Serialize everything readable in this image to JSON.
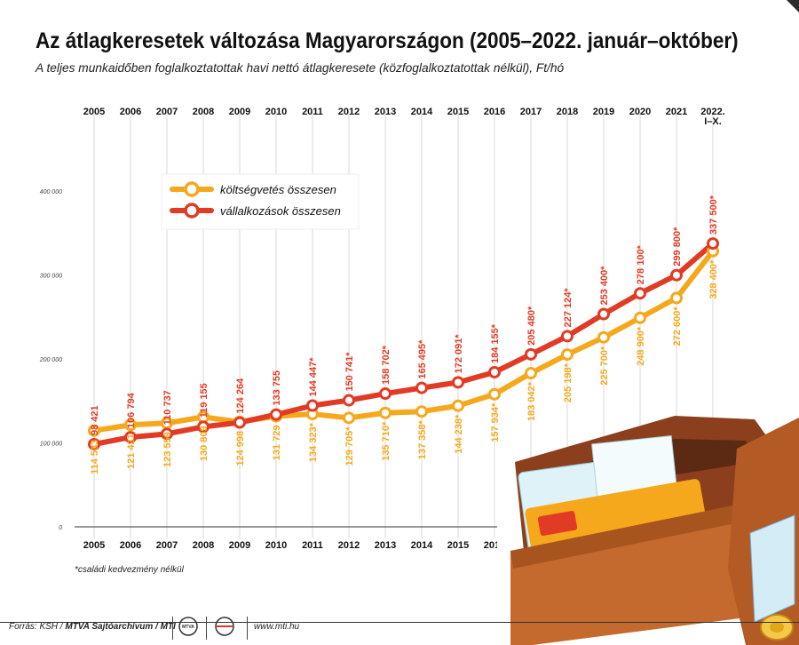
{
  "header": {
    "title": "Az átlagkeresetek változása Magyarországon (2005–2022. január–október)",
    "subtitle": "A teljes munkaidőben foglalkoztatottak havi nettó átlagkeresete (közfoglalkoztatottak nélkül), Ft/hó"
  },
  "chart_data": {
    "type": "line",
    "categories": [
      "2005",
      "2006",
      "2007",
      "2008",
      "2009",
      "2010",
      "2011",
      "2012",
      "2013",
      "2014",
      "2015",
      "2016",
      "2017",
      "2018",
      "2019",
      "2020",
      "2021",
      "2022. I–X."
    ],
    "x_labels_top": [
      "2005",
      "2006",
      "2007",
      "2008",
      "2009",
      "2010",
      "2011",
      "2012",
      "2013",
      "2014",
      "2015",
      "2016",
      "2017",
      "2018",
      "2019",
      "2020",
      "2021",
      "2022.|I–X."
    ],
    "x_labels_bottom": [
      "2005",
      "2006",
      "2007",
      "2008",
      "2009",
      "2010",
      "2011",
      "2012",
      "2013",
      "2014",
      "2015",
      "2016"
    ],
    "yticks": [
      {
        "value": 0,
        "label": "0"
      },
      {
        "value": 100000,
        "label": "100 000"
      },
      {
        "value": 200000,
        "label": "200 000"
      },
      {
        "value": 300000,
        "label": "300 000"
      },
      {
        "value": 400000,
        "label": "400 000"
      }
    ],
    "ylim": [
      0,
      400000
    ],
    "grid": "vertical",
    "legend": "top-left",
    "series": [
      {
        "name": "költségvetés összesen",
        "color": "#f6a81c",
        "label_position": "below",
        "values": [
          114583,
          121421,
          123559,
          130809,
          124998,
          131729,
          134323,
          129705,
          135710,
          137358,
          144238,
          157934,
          183042,
          205198,
          225700,
          248900,
          272600,
          328400
        ],
        "labels": [
          "114 583",
          "121 421",
          "123 559",
          "130 809",
          "124 998",
          "131 729",
          "134 323*",
          "129 705*",
          "135 710*",
          "137 358*",
          "144 238*",
          "157 934*",
          "183 042*",
          "205 198*",
          "225 700*",
          "248 900*",
          "272 600*",
          "328 400*"
        ]
      },
      {
        "name": "vállalkozások összesen",
        "color": "#e23b25",
        "label_position": "above",
        "values": [
          98421,
          106794,
          110737,
          119155,
          124264,
          133755,
          144447,
          150741,
          158702,
          165495,
          172091,
          184155,
          205480,
          227124,
          253400,
          278100,
          299800,
          337500
        ],
        "labels": [
          "98 421",
          "106 794",
          "110 737",
          "119 155",
          "124 264",
          "133 755",
          "144 447*",
          "150 741*",
          "158 702*",
          "165 495*",
          "172 091*",
          "184 155*",
          "205 480*",
          "227 124*",
          "253 400*",
          "278 100*",
          "299 800*",
          "337 500*"
        ]
      }
    ]
  },
  "footnote": "*családi kedvezmény nélkül",
  "footer": {
    "source_prefix": "Forrás: KSH / ",
    "source_bold": "MTVA Sajtóarchívum / MTI",
    "url": "www.mti.hu",
    "logo1_text": "MTVA"
  },
  "illustration": {
    "icon": "wallet-icon"
  }
}
